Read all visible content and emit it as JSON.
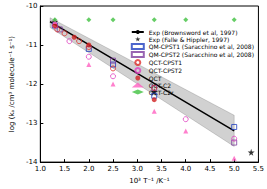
{
  "chart_data": {
    "type": "scatter",
    "x_label": "10³ T⁻¹ /K⁻¹",
    "y_label": "log (kₐ /cm³ molecule⁻¹ s⁻¹)",
    "xlim": [
      1.0,
      5.5
    ],
    "xticks": [
      {
        "value": 1.0,
        "label": "1.0"
      },
      {
        "value": 1.5,
        "label": "1.5"
      },
      {
        "value": 2.0,
        "label": "2.0"
      },
      {
        "value": 2.5,
        "label": "2.5"
      },
      {
        "value": 3.0,
        "label": "3.0"
      },
      {
        "value": 3.5,
        "label": "3.5"
      },
      {
        "value": 4.0,
        "label": "4.0"
      },
      {
        "value": 4.5,
        "label": "4.5"
      },
      {
        "value": 5.0,
        "label": "5.0"
      },
      {
        "value": 5.5,
        "label": "5.5"
      }
    ],
    "ylim": [
      -14,
      -10
    ],
    "yticks": [
      -14,
      -13,
      -12,
      -11,
      -10
    ],
    "grid": false,
    "legend": "top-right",
    "series": [
      {
        "name": "Exp (Brownsword et al, 1997)",
        "type": "line",
        "line_style": "solid",
        "color": "#000000",
        "x": [
          1.2,
          5.0
        ],
        "values": [
          -10.4,
          -13.2
        ],
        "band": {
          "x": [
            1.2,
            5.0
          ],
          "lower": [
            -10.55,
            -13.6
          ],
          "upper": [
            -10.3,
            -12.8
          ]
        }
      },
      {
        "name": "Exp (Falle & Hippler, 1997)",
        "type": "scatter",
        "marker": "asterisk",
        "color": "#000000",
        "x": [
          1.3,
          3.35,
          5.35
        ],
        "values": [
          -10.4,
          -12.2,
          -13.75
        ]
      },
      {
        "name": "QM-CPST1 (Saracchino et al, 2008)",
        "type": "scatter",
        "marker": "square-open",
        "color": "#1f3fbf",
        "x": [
          1.3,
          2.0,
          2.5,
          3.35,
          5.0
        ],
        "values": [
          -10.5,
          -11.1,
          -11.5,
          -12.3,
          -13.1
        ]
      },
      {
        "name": "QM-CPST2 (Saracchino et al, 2008)",
        "type": "scatter",
        "marker": "square-open",
        "color": "#7f3f9f",
        "x": [
          1.4,
          2.5,
          3.35,
          5.0
        ],
        "values": [
          -10.6,
          -11.4,
          -12.1,
          -13.5
        ]
      },
      {
        "name": "QCT-CPST1",
        "type": "scatter",
        "marker": "circle-open",
        "color": "#e0302a",
        "x": [
          1.35,
          1.5,
          1.8,
          2.0,
          2.5,
          3.35
        ],
        "values": [
          -10.6,
          -10.7,
          -10.9,
          -11.05,
          -11.6,
          -12.1
        ]
      },
      {
        "name": "QCT-CPST2",
        "type": "scatter",
        "marker": "circle-open",
        "color": "#e040c0",
        "x": [
          1.3,
          1.6,
          2.0,
          2.5,
          4.0,
          5.0
        ],
        "values": [
          -10.5,
          -10.9,
          -11.3,
          -11.8,
          -12.9,
          -13.4
        ]
      },
      {
        "name": "QCT",
        "type": "scatter",
        "marker": "circle",
        "color": "#d02020",
        "x": [
          1.3,
          1.7,
          2.0,
          3.35
        ],
        "values": [
          -10.5,
          -10.8,
          -11.0,
          -12.4
        ]
      },
      {
        "name": "QCT-C2",
        "type": "scatter",
        "marker": "triangle",
        "color": "#ff60c0",
        "x": [
          1.3,
          2.0,
          2.5,
          3.35,
          4.0,
          5.0
        ],
        "values": [
          -10.4,
          -11.5,
          -12.0,
          -12.7,
          -13.2,
          -13.9
        ]
      },
      {
        "name": "QCT-C2r",
        "type": "scatter",
        "marker": "diamond",
        "color": "#40c040",
        "x": [
          1.3,
          2.0,
          2.5,
          3.35,
          4.0,
          5.0
        ],
        "values": [
          -10.35,
          -10.35,
          -10.35,
          -10.35,
          -10.35,
          -10.35
        ]
      }
    ]
  }
}
